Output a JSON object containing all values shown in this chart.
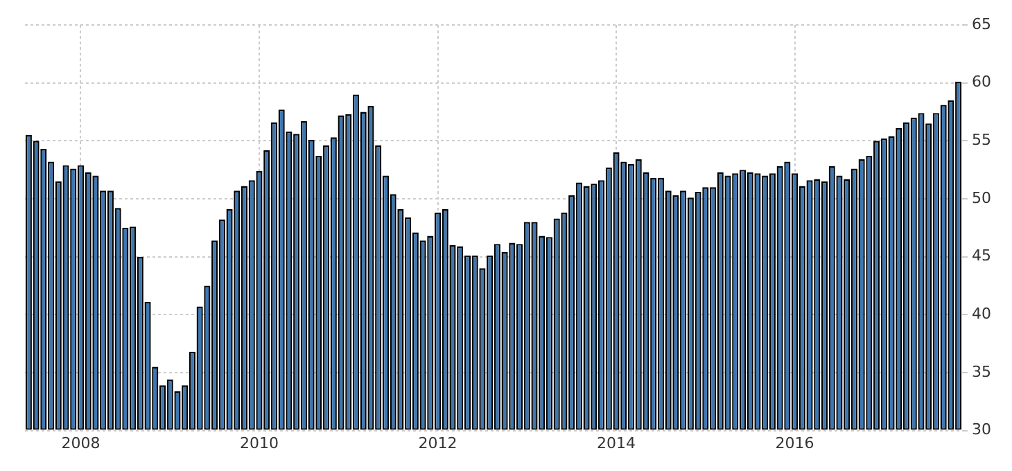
{
  "chart_data": {
    "type": "bar",
    "categories": [
      null,
      null,
      null,
      null,
      null,
      null,
      null,
      "2008",
      null,
      null,
      null,
      null,
      null,
      null,
      null,
      null,
      null,
      null,
      null,
      null,
      null,
      null,
      null,
      null,
      null,
      null,
      null,
      null,
      null,
      null,
      null,
      "2010",
      null,
      null,
      null,
      null,
      null,
      null,
      null,
      null,
      null,
      null,
      null,
      null,
      null,
      null,
      null,
      null,
      null,
      null,
      null,
      null,
      null,
      null,
      null,
      "2012",
      null,
      null,
      null,
      null,
      null,
      null,
      null,
      null,
      null,
      null,
      null,
      null,
      null,
      null,
      null,
      null,
      null,
      null,
      null,
      null,
      null,
      null,
      null,
      "2014",
      null,
      null,
      null,
      null,
      null,
      null,
      null,
      null,
      null,
      null,
      null,
      null,
      null,
      null,
      null,
      null,
      null,
      null,
      null,
      null,
      null,
      null,
      null,
      "2016",
      null,
      null,
      null,
      null,
      null,
      null,
      null,
      null,
      null,
      null,
      null,
      null,
      null,
      null,
      null,
      null,
      null,
      null,
      null,
      null,
      null,
      null
    ],
    "values": [
      55.5,
      55.0,
      54.3,
      53.2,
      51.5,
      52.9,
      52.6,
      52.9,
      52.3,
      52.0,
      50.7,
      50.7,
      49.2,
      47.5,
      47.6,
      45.0,
      41.1,
      35.5,
      33.9,
      34.4,
      33.4,
      33.9,
      36.8,
      40.7,
      42.5,
      46.4,
      48.2,
      49.1,
      50.7,
      51.1,
      51.6,
      52.4,
      54.2,
      56.6,
      57.7,
      55.8,
      55.6,
      56.7,
      55.1,
      53.7,
      54.6,
      55.3,
      57.2,
      57.3,
      59.0,
      57.5,
      58.0,
      54.6,
      52.0,
      50.4,
      49.1,
      48.4,
      47.1,
      46.4,
      46.8,
      48.8,
      49.1,
      46.0,
      45.9,
      45.1,
      45.1,
      44.0,
      45.1,
      46.1,
      45.4,
      46.2,
      46.1,
      48.0,
      48.0,
      46.8,
      46.7,
      48.3,
      48.8,
      50.3,
      51.4,
      51.1,
      51.3,
      51.6,
      52.7,
      54.0,
      53.2,
      53.0,
      53.4,
      52.3,
      51.8,
      51.8,
      50.7,
      50.3,
      50.7,
      50.1,
      50.6,
      51.0,
      51.0,
      52.3,
      52.0,
      52.2,
      52.5,
      52.3,
      52.2,
      52.0,
      52.2,
      52.8,
      53.2,
      52.2,
      51.1,
      51.6,
      51.7,
      51.5,
      52.8,
      52.0,
      51.7,
      52.6,
      53.4,
      53.7,
      55.0,
      55.2,
      55.4,
      56.1,
      56.6,
      57.0,
      57.4,
      56.5,
      57.4,
      58.1,
      58.5,
      60.1
    ],
    "color": "#3f78b0",
    "ylim": [
      30,
      65
    ],
    "yticks": [
      30,
      35,
      40,
      45,
      50,
      55,
      60,
      65
    ],
    "grid": true
  }
}
